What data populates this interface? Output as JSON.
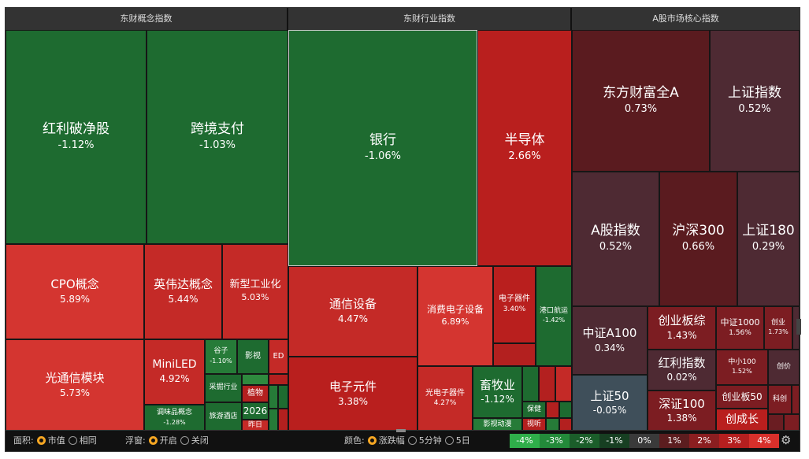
{
  "sections": {
    "concept": "东财概念指数",
    "industry": "东财行业指数",
    "core": "A股市场核心指数"
  },
  "tiles": {
    "hongli": {
      "n": "红利破净股",
      "p": "-1.12%"
    },
    "kuajing": {
      "n": "跨境支付",
      "p": "-1.03%"
    },
    "cpo": {
      "n": "CPO概念",
      "p": "5.89%"
    },
    "nvda": {
      "n": "英伟达概念",
      "p": "5.44%"
    },
    "xingong": {
      "n": "新型工业化",
      "p": "5.03%"
    },
    "guangtx": {
      "n": "光通信模块",
      "p": "5.73%"
    },
    "miniled": {
      "n": "MiniLED",
      "p": "4.92%"
    },
    "guzi": {
      "n": "谷子",
      "p": "-1.10%"
    },
    "yingshi": {
      "n": "影视"
    },
    "ed": {
      "n": "ED"
    },
    "tiaowei": {
      "n": "调味品概念",
      "p": "-1.28%"
    },
    "caiguo": {
      "n": "采掘行业"
    },
    "zhiwu": {
      "n": "植物"
    },
    "lvyou": {
      "n": "旅游酒店"
    },
    "y2026": {
      "n": "2026"
    },
    "zuori": {
      "n": "昨日"
    },
    "yinhang": {
      "n": "银行",
      "p": "-1.06%"
    },
    "bandaoti": {
      "n": "半导体",
      "p": "2.66%"
    },
    "tongxin": {
      "n": "通信设备",
      "p": "4.47%"
    },
    "xiaofei": {
      "n": "消费电子设备",
      "p": "6.89%"
    },
    "dianziqj": {
      "n": "电子器件",
      "p": "3.40%"
    },
    "gangkou": {
      "n": "港口航运",
      "p": "-1.42%"
    },
    "dianzyj": {
      "n": "电子元件",
      "p": "3.38%"
    },
    "guangdz": {
      "n": "光电子器件",
      "p": "4.27%"
    },
    "xumu": {
      "n": "畜牧业",
      "p": "-1.12%"
    },
    "baojian": {
      "n": "保健"
    },
    "yingshidm": {
      "n": "影视动漫"
    },
    "shiting": {
      "n": "视听"
    },
    "dfcf": {
      "n": "东方财富全A",
      "p": "0.73%"
    },
    "shzs": {
      "n": "上证指数",
      "p": "0.52%"
    },
    "agzs": {
      "n": "A股指数",
      "p": "0.52%"
    },
    "hs300": {
      "n": "沪深300",
      "p": "0.66%"
    },
    "sz180": {
      "n": "上证180",
      "p": "0.29%"
    },
    "zza100": {
      "n": "中证A100",
      "p": "0.34%"
    },
    "cybz": {
      "n": "创业板综",
      "p": "1.43%"
    },
    "zz1000": {
      "n": "中证1000",
      "p": "1.56%"
    },
    "cy": {
      "n": "创业",
      "p": "1.73%"
    },
    "hlzs": {
      "n": "红利指数",
      "p": "0.02%"
    },
    "zx100": {
      "n": "中小100",
      "p": "1.52%"
    },
    "cxj": {
      "n": "创价"
    },
    "sz50": {
      "n": "上证50",
      "p": "-0.05%"
    },
    "sz100": {
      "n": "深证100",
      "p": "1.38%"
    },
    "cyb50": {
      "n": "创业板50"
    },
    "kc": {
      "n": "科创"
    },
    "cyz": {
      "n": "创成长"
    }
  },
  "bar": {
    "area_label": "面积:",
    "area_opt1": "市值",
    "area_opt2": "相同",
    "float_label": "浮窗:",
    "float_opt1": "开启",
    "float_opt2": "关闭",
    "color_label": "颜色:",
    "color_opt1": "涨跌幅",
    "color_opt2": "5分钟",
    "color_opt3": "5日",
    "legend": [
      {
        "t": "-4%",
        "c": "#2fae4a"
      },
      {
        "t": "-3%",
        "c": "#238a3a"
      },
      {
        "t": "-2%",
        "c": "#1b5e2a"
      },
      {
        "t": "-1%",
        "c": "#173f22"
      },
      {
        "t": "0%",
        "c": "#3a3a3a"
      },
      {
        "t": "1%",
        "c": "#5c1d1f"
      },
      {
        "t": "2%",
        "c": "#8b1e20"
      },
      {
        "t": "3%",
        "c": "#b51f1f"
      },
      {
        "t": "4%",
        "c": "#d8302b"
      }
    ]
  }
}
